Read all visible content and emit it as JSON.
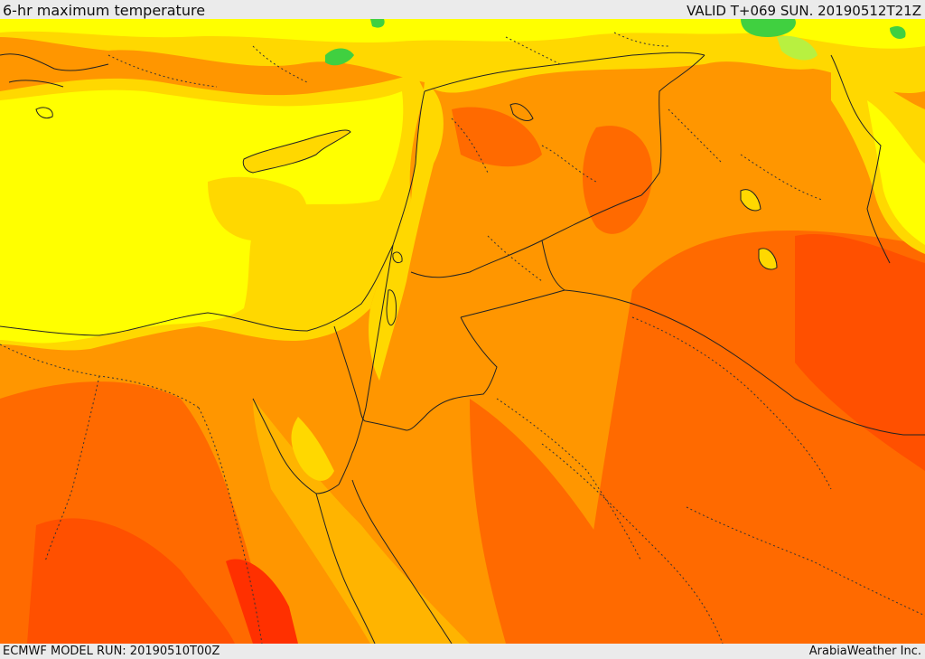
{
  "header": {
    "title": "6-hr maximum temperature",
    "valid": "VALID T+069 SUN. 20190512T21Z"
  },
  "footer": {
    "model_run": "ECMWF MODEL RUN: 20190510T00Z",
    "credit": "ArabiaWeather Inc."
  },
  "colors": {
    "light_green": "#b8f040",
    "green": "#40d040",
    "yellow": "#ffff00",
    "gold": "#ffd800",
    "amber": "#ffb400",
    "orange": "#ff9600",
    "dark_orange": "#ff6a00",
    "red_orange": "#ff5000",
    "red": "#ff3000",
    "border": "#222222"
  }
}
